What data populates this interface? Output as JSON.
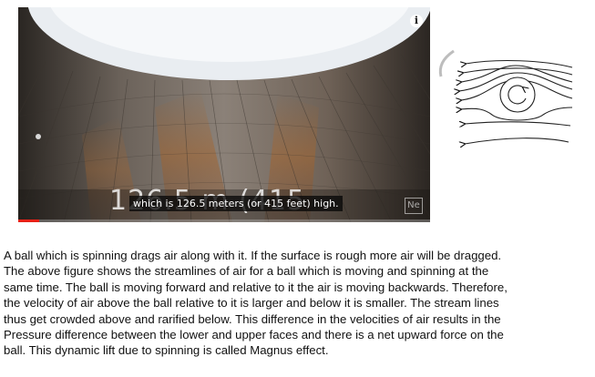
{
  "video": {
    "caption_large": "126.5 m (415",
    "subtitle": "which is 126.5 meters (or 415 feet) high.",
    "info_icon": "info-icon",
    "watermark_icon": "channel-watermark-icon",
    "progress_fraction": 0.05,
    "progress_color": "#e62117"
  },
  "diagram": {
    "ball_rotation": "counter-clockwise"
  },
  "paragraph": {
    "lines": [
      "A ball which is spinning drags air along with it. If the surface is rough more air will be dragged.",
      "The above figure shows the streamlines of air for a ball which is moving and spinning at the",
      "same time. The ball is moving forward and relative to it the air is moving backwards. Therefore,",
      "the velocity of air above the ball relative to it is larger and below it is smaller. The stream lines",
      "thus get crowded above and rarified below. This difference in the velocities of air results in the",
      "Pressure difference between the lower and upper faces and there is a net upward force on the",
      "ball. This dynamic lift due to spinning is called Magnus effect."
    ]
  }
}
